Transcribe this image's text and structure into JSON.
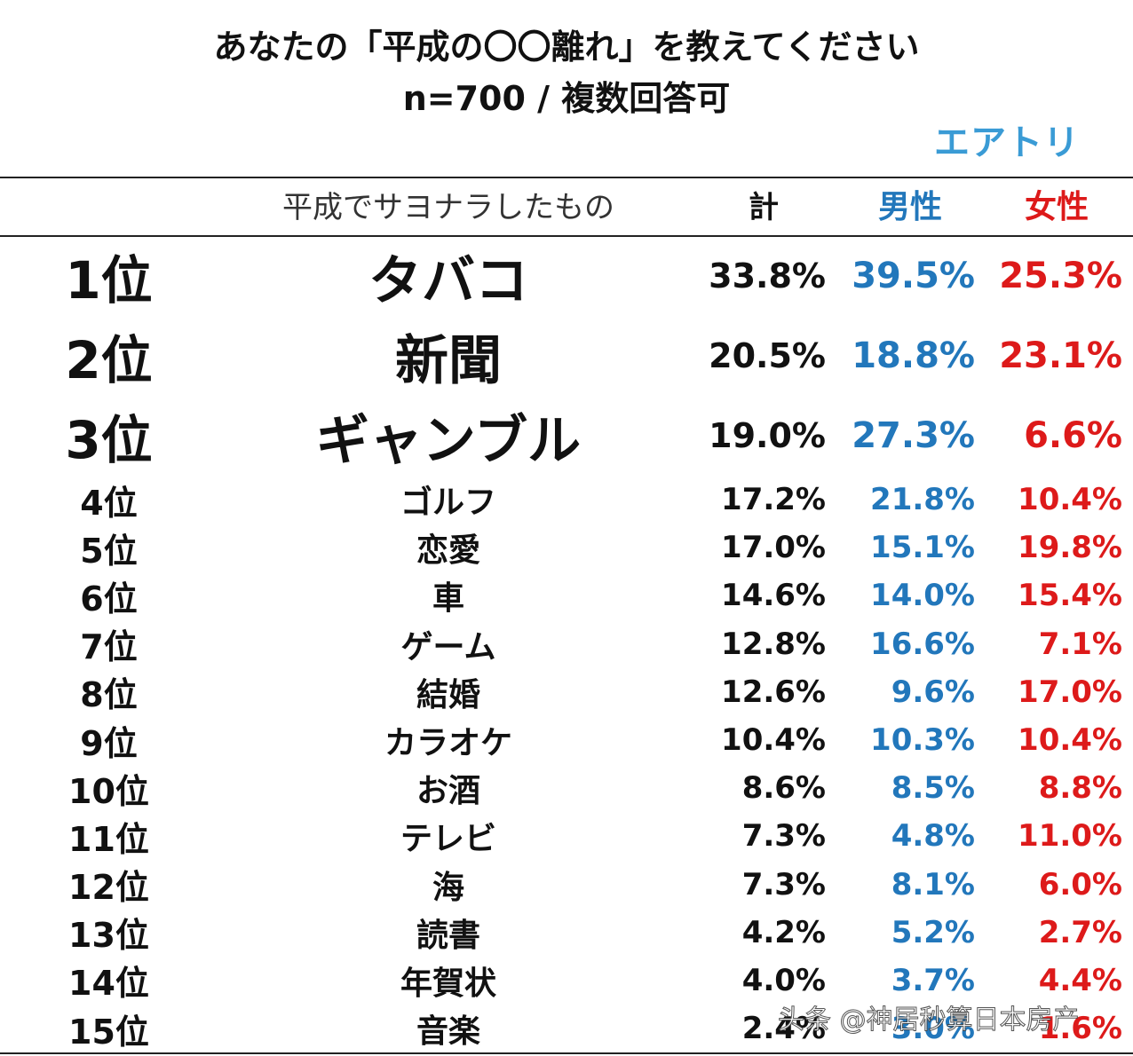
{
  "title": {
    "line1": "あなたの「平成の〇〇離れ」を教えてください",
    "line2": "n=700 / 複数回答可"
  },
  "logo": "エアトリ",
  "header": {
    "item": "平成でサヨナラしたもの",
    "total": "計",
    "male": "男性",
    "female": "女性"
  },
  "colors": {
    "male": "#2277bb",
    "female": "#dd1a1a",
    "logo": "#3a9bd5"
  },
  "rows": [
    {
      "rank": "1位",
      "item": "タバコ",
      "total": "33.8%",
      "male": "39.5%",
      "female": "25.3%"
    },
    {
      "rank": "2位",
      "item": "新聞",
      "total": "20.5%",
      "male": "18.8%",
      "female": "23.1%"
    },
    {
      "rank": "3位",
      "item": "ギャンブル",
      "total": "19.0%",
      "male": "27.3%",
      "female": "6.6%"
    },
    {
      "rank": "4位",
      "item": "ゴルフ",
      "total": "17.2%",
      "male": "21.8%",
      "female": "10.4%"
    },
    {
      "rank": "5位",
      "item": "恋愛",
      "total": "17.0%",
      "male": "15.1%",
      "female": "19.8%"
    },
    {
      "rank": "6位",
      "item": "車",
      "total": "14.6%",
      "male": "14.0%",
      "female": "15.4%"
    },
    {
      "rank": "7位",
      "item": "ゲーム",
      "total": "12.8%",
      "male": "16.6%",
      "female": "7.1%"
    },
    {
      "rank": "8位",
      "item": "結婚",
      "total": "12.6%",
      "male": "9.6%",
      "female": "17.0%"
    },
    {
      "rank": "9位",
      "item": "カラオケ",
      "total": "10.4%",
      "male": "10.3%",
      "female": "10.4%"
    },
    {
      "rank": "10位",
      "item": "お酒",
      "total": "8.6%",
      "male": "8.5%",
      "female": "8.8%"
    },
    {
      "rank": "11位",
      "item": "テレビ",
      "total": "7.3%",
      "male": "4.8%",
      "female": "11.0%"
    },
    {
      "rank": "12位",
      "item": "海",
      "total": "7.3%",
      "male": "8.1%",
      "female": "6.0%"
    },
    {
      "rank": "13位",
      "item": "読書",
      "total": "4.2%",
      "male": "5.2%",
      "female": "2.7%"
    },
    {
      "rank": "14位",
      "item": "年賀状",
      "total": "4.0%",
      "male": "3.7%",
      "female": "4.4%"
    },
    {
      "rank": "15位",
      "item": "音楽",
      "total": "2.4%",
      "male": "3.0%",
      "female": "1.6%"
    }
  ],
  "watermark": "头条 @神居秒算日本房产"
}
